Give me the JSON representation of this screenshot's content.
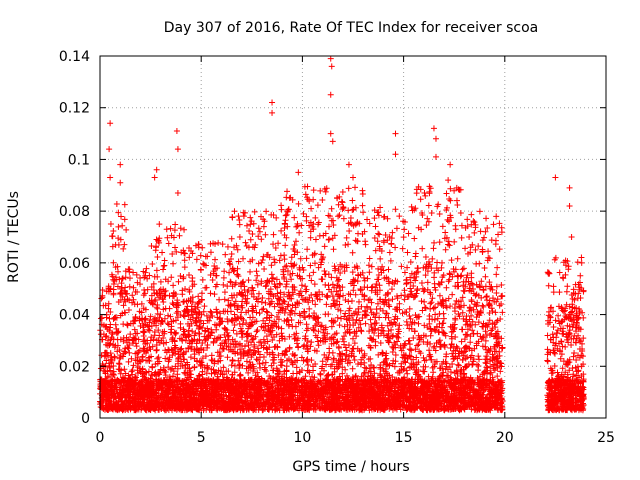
{
  "chart_data": {
    "type": "scatter",
    "title": "Day 307 of 2016, Rate Of TEC Index for receiver scoa",
    "xlabel": "GPS time / hours",
    "ylabel": "ROTI / TECUs",
    "xlim": [
      0,
      25
    ],
    "ylim": [
      0,
      0.14
    ],
    "xticks": [
      "0",
      "5",
      "10",
      "15",
      "20",
      "25"
    ],
    "yticks": [
      "0",
      "0.02",
      "0.04",
      "0.06",
      "0.08",
      "0.1",
      "0.12",
      "0.14"
    ],
    "grid": true,
    "marker": "+",
    "marker_color": "#ff0000",
    "data_gap_hours": [
      19.9,
      22.1
    ],
    "series": [
      {
        "name": "ROTI",
        "sampling": "dense per-epoch values, mostly 0.003-0.07 TECU/min, summarized by the points below",
        "peaks": [
          {
            "x": 0.5,
            "y": 0.114
          },
          {
            "x": 0.45,
            "y": 0.104
          },
          {
            "x": 0.5,
            "y": 0.093
          },
          {
            "x": 1.0,
            "y": 0.098
          },
          {
            "x": 1.0,
            "y": 0.091
          },
          {
            "x": 2.8,
            "y": 0.096
          },
          {
            "x": 2.7,
            "y": 0.093
          },
          {
            "x": 3.8,
            "y": 0.111
          },
          {
            "x": 3.85,
            "y": 0.104
          },
          {
            "x": 3.85,
            "y": 0.087
          },
          {
            "x": 8.5,
            "y": 0.122
          },
          {
            "x": 8.5,
            "y": 0.118
          },
          {
            "x": 9.8,
            "y": 0.095
          },
          {
            "x": 11.4,
            "y": 0.139
          },
          {
            "x": 11.45,
            "y": 0.136
          },
          {
            "x": 11.4,
            "y": 0.125
          },
          {
            "x": 11.4,
            "y": 0.11
          },
          {
            "x": 11.5,
            "y": 0.107
          },
          {
            "x": 12.3,
            "y": 0.098
          },
          {
            "x": 12.5,
            "y": 0.093
          },
          {
            "x": 14.6,
            "y": 0.11
          },
          {
            "x": 14.6,
            "y": 0.102
          },
          {
            "x": 16.5,
            "y": 0.112
          },
          {
            "x": 16.6,
            "y": 0.108
          },
          {
            "x": 16.6,
            "y": 0.101
          },
          {
            "x": 17.3,
            "y": 0.098
          },
          {
            "x": 17.2,
            "y": 0.092
          },
          {
            "x": 22.5,
            "y": 0.093
          },
          {
            "x": 23.2,
            "y": 0.089
          },
          {
            "x": 23.2,
            "y": 0.082
          },
          {
            "x": 23.3,
            "y": 0.07
          },
          {
            "x": 23.8,
            "y": 0.06
          }
        ],
        "segments": [
          {
            "x_start": 0.0,
            "x_end": 0.4,
            "y_min": 0.003,
            "y_max": 0.06
          },
          {
            "x_start": 0.4,
            "x_end": 1.3,
            "y_min": 0.003,
            "y_max": 0.085
          },
          {
            "x_start": 1.3,
            "x_end": 2.5,
            "y_min": 0.003,
            "y_max": 0.058
          },
          {
            "x_start": 2.5,
            "x_end": 4.2,
            "y_min": 0.003,
            "y_max": 0.075
          },
          {
            "x_start": 4.2,
            "x_end": 6.5,
            "y_min": 0.003,
            "y_max": 0.068
          },
          {
            "x_start": 6.5,
            "x_end": 8.8,
            "y_min": 0.003,
            "y_max": 0.08
          },
          {
            "x_start": 8.8,
            "x_end": 10.2,
            "y_min": 0.003,
            "y_max": 0.09
          },
          {
            "x_start": 10.2,
            "x_end": 13.0,
            "y_min": 0.003,
            "y_max": 0.09
          },
          {
            "x_start": 13.0,
            "x_end": 15.5,
            "y_min": 0.003,
            "y_max": 0.082
          },
          {
            "x_start": 15.5,
            "x_end": 18.0,
            "y_min": 0.003,
            "y_max": 0.09
          },
          {
            "x_start": 18.0,
            "x_end": 19.9,
            "y_min": 0.003,
            "y_max": 0.08
          },
          {
            "x_start": 22.1,
            "x_end": 23.9,
            "y_min": 0.003,
            "y_max": 0.065
          }
        ]
      }
    ]
  }
}
